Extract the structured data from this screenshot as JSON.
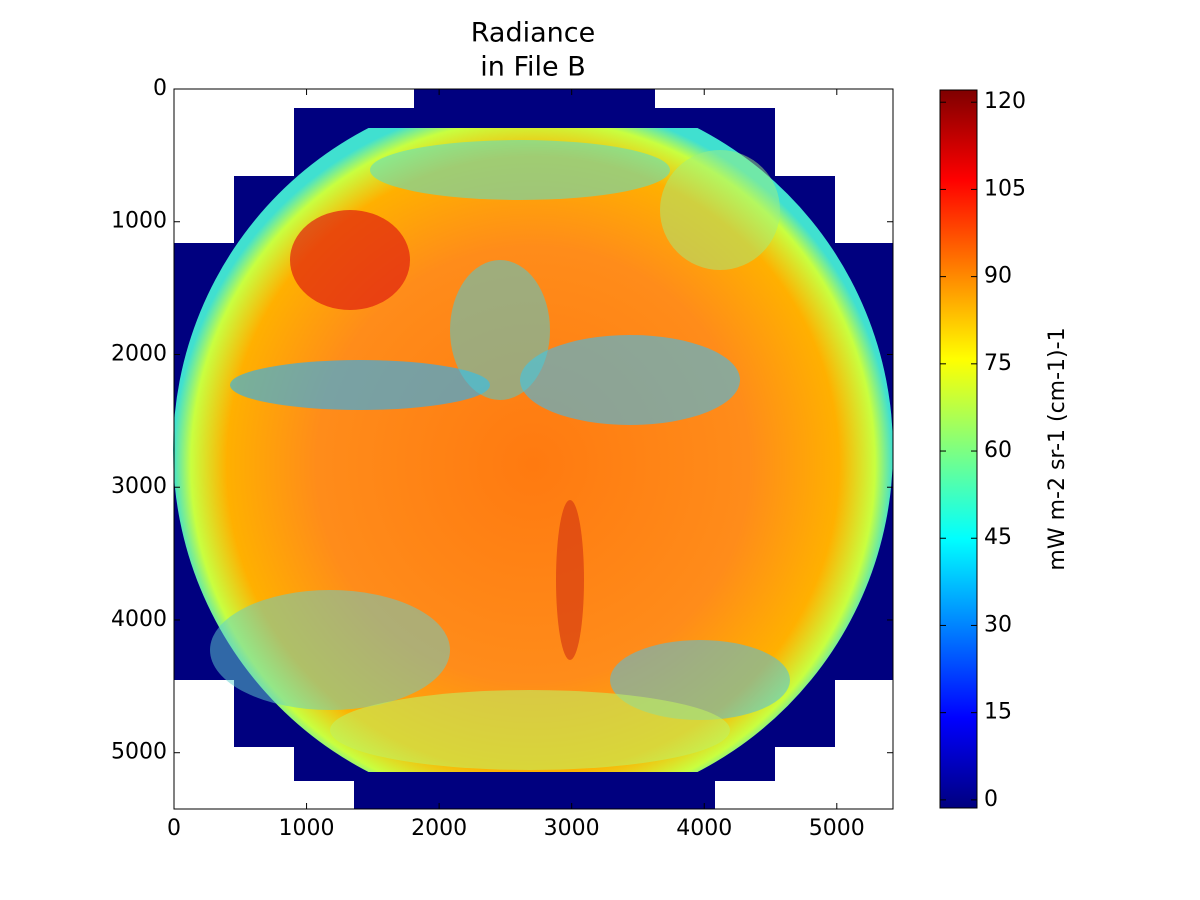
{
  "chart_data": {
    "type": "image",
    "title": [
      "Radiance",
      "in File B"
    ],
    "xlim": [
      0,
      5424
    ],
    "ylim": [
      5424,
      0
    ],
    "xticks": [
      0,
      1000,
      2000,
      3000,
      4000,
      5000
    ],
    "yticks": [
      0,
      1000,
      2000,
      3000,
      4000,
      5000
    ],
    "colormap": "jet",
    "colorbar": {
      "label": "mW m-2 sr-1 (cm-1)-1",
      "clim": [
        -1.4,
        122.1
      ],
      "ticks": [
        0,
        15,
        30,
        45,
        60,
        75,
        90,
        105,
        120
      ]
    }
  }
}
